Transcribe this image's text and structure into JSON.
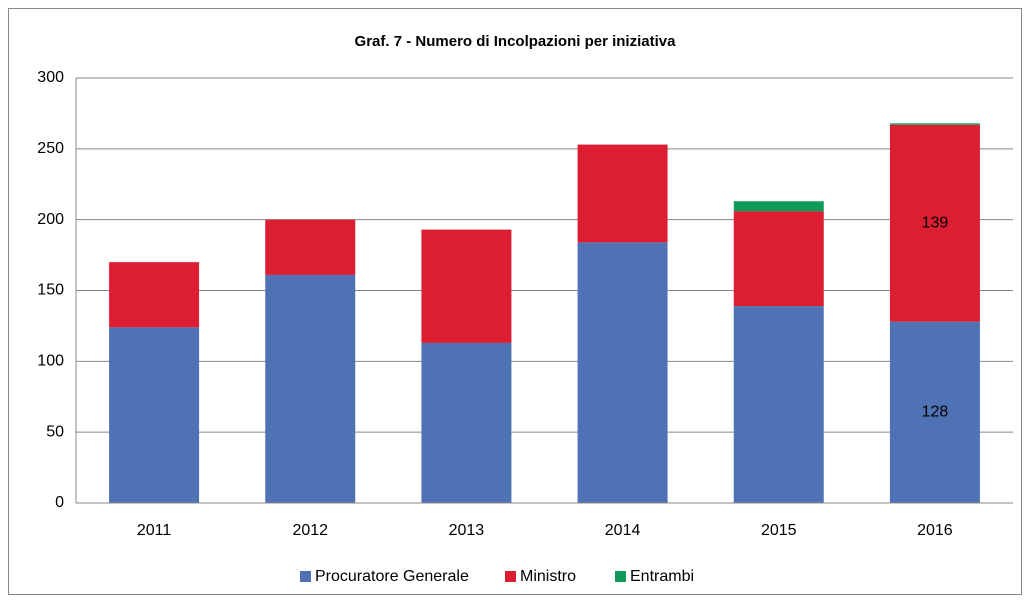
{
  "chart_data": {
    "type": "stacked_bar",
    "title": "Graf. 7 - Numero di Incolpazioni per iniziativa",
    "categories": [
      "2011",
      "2012",
      "2013",
      "2014",
      "2015",
      "2016"
    ],
    "series": [
      {
        "name": "Procuratore Generale",
        "color": "#4f72b5",
        "values": [
          124,
          161,
          113,
          184,
          139,
          128
        ],
        "value_labels": [
          null,
          null,
          null,
          null,
          null,
          "128"
        ]
      },
      {
        "name": "Ministro",
        "color": "#dc1e32",
        "values": [
          46,
          39,
          80,
          69,
          67,
          139
        ],
        "value_labels": [
          null,
          null,
          null,
          null,
          null,
          "139"
        ]
      },
      {
        "name": "Entrambi",
        "color": "#0f9a5a",
        "values": [
          0,
          0,
          0,
          0,
          7,
          1
        ]
      }
    ],
    "ylim": [
      0,
      300
    ],
    "yticks": [
      0,
      50,
      100,
      150,
      200,
      250,
      300
    ],
    "grid": true,
    "legend": "bottom"
  }
}
